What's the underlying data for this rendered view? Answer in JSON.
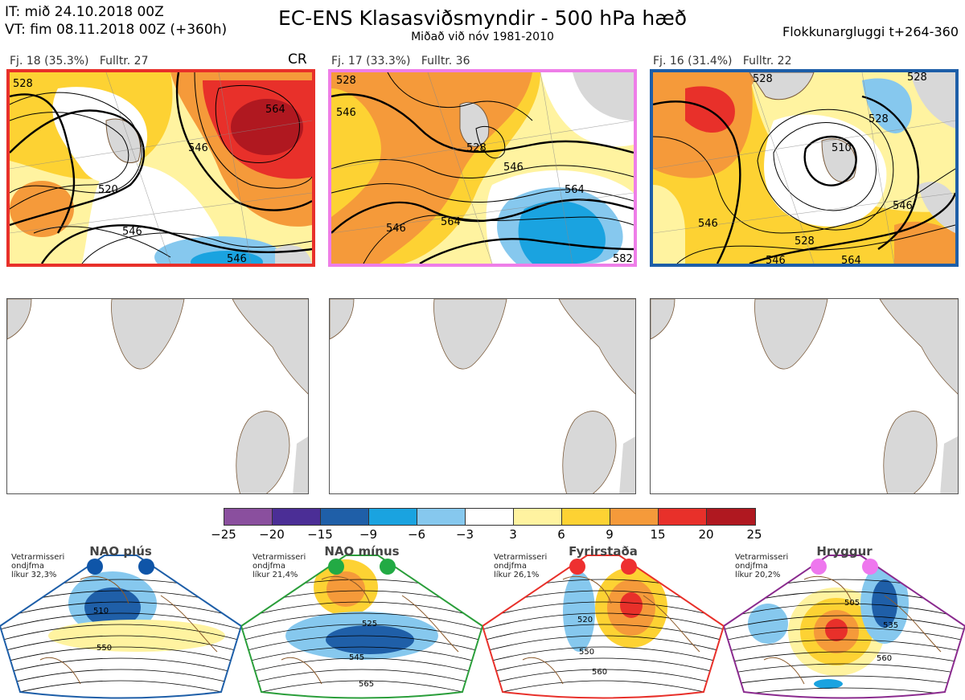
{
  "header": {
    "it_line": "IT: mið 24.10.2018 00Z",
    "vt_line": "VT: fim 08.11.2018 00Z  (+360h)",
    "title": "EC-ENS Klasasviðsmyndir - 500 hPa hæð",
    "subtitle": "Miðað við nóv 1981-2010",
    "window": "Flokkunargluggi t+264-360"
  },
  "panels": [
    {
      "label": "Fj. 18 (35.3%)",
      "fulltr": "Fulltr. 27",
      "tag": "CR",
      "border": "#e8302a",
      "contours": [
        "528",
        "564",
        "546",
        "520",
        "546",
        "546"
      ]
    },
    {
      "label": "Fj. 17 (33.3%)",
      "fulltr": "Fulltr. 36",
      "tag": "",
      "border": "#ee7ee8",
      "contours": [
        "528",
        "546",
        "528",
        "546",
        "564",
        "546",
        "564",
        "582"
      ]
    },
    {
      "label": "Fj. 16 (31.4%)",
      "fulltr": "Fulltr. 22",
      "tag": "",
      "border": "#1d5ea8",
      "contours": [
        "528",
        "528",
        "510",
        "528",
        "546",
        "528",
        "546",
        "546",
        "564"
      ]
    }
  ],
  "colorbar": {
    "colors": [
      "#8a4f9e",
      "#4b2e96",
      "#1f5fa8",
      "#1aa3e0",
      "#86c8ee",
      "#ffffff",
      "#fff3a0",
      "#fdd233",
      "#f59a3a",
      "#e8302a",
      "#b01820"
    ],
    "ticks": [
      "−25",
      "−20",
      "−15",
      "−9",
      "−6",
      "−3",
      "3",
      "6",
      "9",
      "15",
      "20",
      "25"
    ]
  },
  "regimes": [
    {
      "name": "NAO plús",
      "note": [
        "Vetrarmisseri",
        "ondjfma",
        "líkur 32,3%"
      ],
      "color": "#1d5ea8",
      "dot": "#0f55a8",
      "labels": [
        "510",
        "550"
      ]
    },
    {
      "name": "NAO mínus",
      "note": [
        "Vetrarmisseri",
        "ondjfma",
        "líkur 21,4%"
      ],
      "color": "#2a9e3a",
      "dot": "#22aa44",
      "labels": [
        "525",
        "545",
        "565"
      ]
    },
    {
      "name": "Fyrirstaða",
      "note": [
        "Vetrarmisseri",
        "ondjfma",
        "líkur 26,1%"
      ],
      "color": "#e8302a",
      "dot": "#ee3030",
      "labels": [
        "520",
        "550",
        "560"
      ]
    },
    {
      "name": "Hryggur",
      "note": [
        "Vetrarmisseri",
        "ondjfma",
        "líkur 20,2%"
      ],
      "color": "#8a2a8e",
      "dot": "#ee77ee",
      "labels": [
        "505",
        "535",
        "560"
      ]
    }
  ]
}
